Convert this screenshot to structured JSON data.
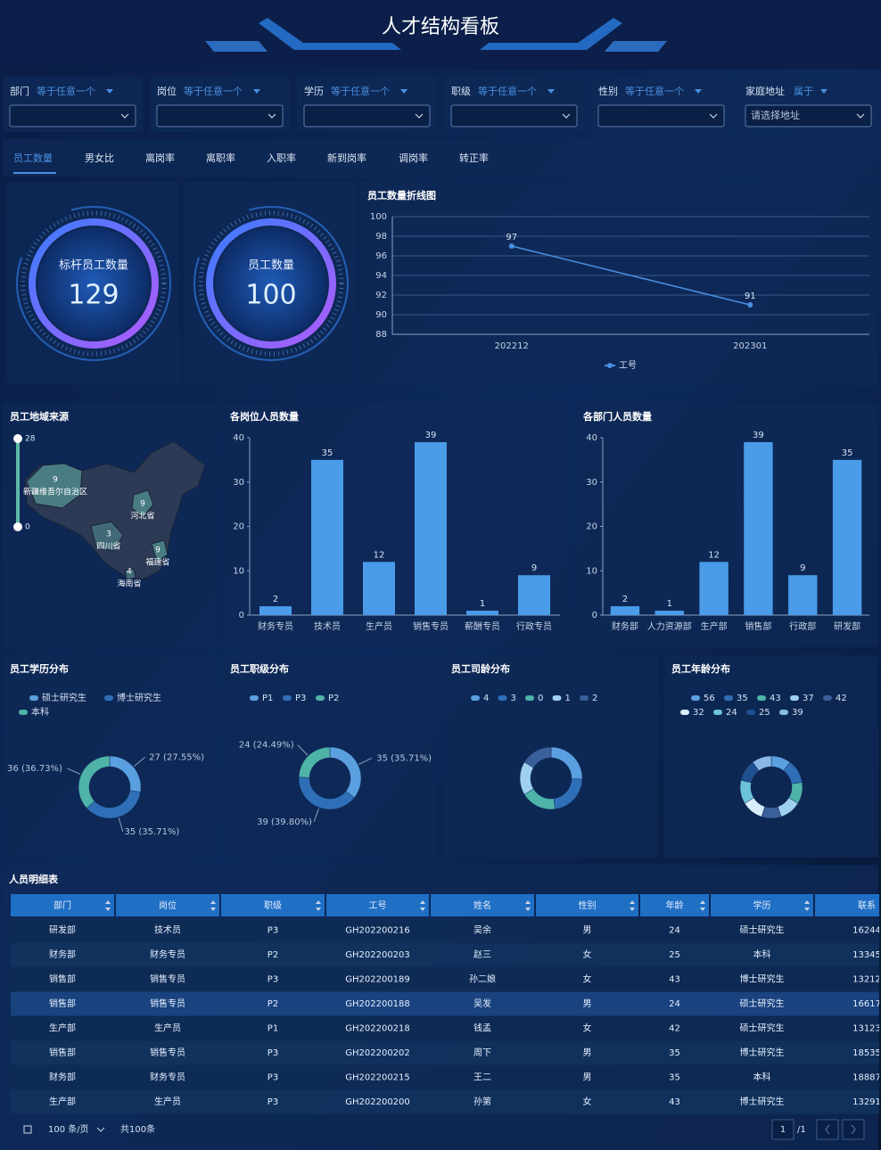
{
  "header": {
    "title": "人才结构看板"
  },
  "filters": [
    {
      "label": "部门",
      "operator": "等于任意一个"
    },
    {
      "label": "岗位",
      "operator": "等于任意一个"
    },
    {
      "label": "学历",
      "operator": "等于任意一个"
    },
    {
      "label": "职级",
      "operator": "等于任意一个"
    },
    {
      "label": "性别",
      "operator": "等于任意一个"
    },
    {
      "label": "家庭地址",
      "operator": "属于",
      "placeholder": "请选择地址"
    }
  ],
  "tabs": [
    "员工数量",
    "男女比",
    "离岗率",
    "离职率",
    "入职率",
    "新到岗率",
    "调岗率",
    "转正率"
  ],
  "gauges": [
    {
      "label": "标杆员工数量",
      "value": 129
    },
    {
      "label": "员工数量",
      "value": 100
    }
  ],
  "chart_data": [
    {
      "type": "line",
      "title": "员工数量折线图",
      "categories": [
        "202212",
        "202301"
      ],
      "series": [
        {
          "name": "工号",
          "color": "#4a90e2",
          "values": [
            97,
            91
          ]
        }
      ],
      "ylim": [
        88,
        100
      ],
      "yticks": [
        88,
        90,
        92,
        94,
        96,
        98,
        100
      ],
      "grid": true
    },
    {
      "type": "map",
      "title": "员工地域来源",
      "regions": [
        "新疆维吾尔自治区",
        "河北省",
        "四川省",
        "福建省",
        "海南省"
      ],
      "values": [
        9,
        9,
        3,
        9,
        4
      ],
      "range": [
        0,
        28
      ],
      "colors": [
        "#3e5f72",
        "#5fb8a8"
      ]
    },
    {
      "type": "bar",
      "title": "各岗位人员数量",
      "categories": [
        "财务专员",
        "技术员",
        "生产员",
        "销售专员",
        "薪酬专员",
        "行政专员"
      ],
      "values": [
        2,
        35,
        12,
        39,
        1,
        9
      ],
      "color": "#4a9be8",
      "ylim": [
        0,
        40
      ],
      "yticks": [
        0,
        10,
        20,
        30,
        40
      ],
      "grid": false
    },
    {
      "type": "bar",
      "title": "各部门人员数量",
      "categories": [
        "财务部",
        "人力资源部",
        "生产部",
        "销售部",
        "行政部",
        "研发部"
      ],
      "values": [
        2,
        1,
        12,
        39,
        9,
        35
      ],
      "color": "#4a9be8",
      "ylim": [
        0,
        40
      ],
      "yticks": [
        0,
        10,
        20,
        30,
        40
      ],
      "grid": false
    },
    {
      "type": "pie",
      "title": "员工学历分布",
      "categories": [
        "硕士研究生",
        "博士研究生",
        "本科"
      ],
      "values": [
        27,
        35,
        36
      ],
      "value_labels": [
        "27 (27.55%)",
        "35 (35.71%)",
        "36 (36.73%)"
      ],
      "colors": [
        "#5aa0e0",
        "#2f6fb8",
        "#4fb3a8"
      ]
    },
    {
      "type": "pie",
      "title": "员工职级分布",
      "categories": [
        "P1",
        "P3",
        "P2"
      ],
      "values": [
        35,
        39,
        24
      ],
      "value_labels": [
        "35 (35.71%)",
        "39 (39.80%)",
        "24 (24.49%)"
      ],
      "colors": [
        "#5aa0e0",
        "#2f6fb8",
        "#4fb3a8"
      ]
    },
    {
      "type": "pie",
      "title": "员工司龄分布",
      "categories": [
        "4",
        "3",
        "0",
        "1",
        "2"
      ],
      "values": [
        25,
        22,
        18,
        17,
        16
      ],
      "colors": [
        "#5aa0e0",
        "#2f6fb8",
        "#4fb3a8",
        "#9fd0f0",
        "#3a5f9a"
      ]
    },
    {
      "type": "pie",
      "title": "员工年龄分布",
      "categories": [
        "56",
        "35",
        "43",
        "37",
        "42",
        "32",
        "24",
        "25",
        "39"
      ],
      "values": [
        10,
        12,
        11,
        11,
        10,
        11,
        12,
        11,
        10
      ],
      "colors": [
        "#5aa0e0",
        "#2f6fb8",
        "#4fb3a8",
        "#9fd0f0",
        "#3a5f9a",
        "#d8ecfa",
        "#6cc3d8",
        "#1f4f8f",
        "#8ab8e6"
      ]
    }
  ],
  "table": {
    "title": "人员明细表",
    "columns": [
      "部门",
      "岗位",
      "职级",
      "工号",
      "姓名",
      "性别",
      "年龄",
      "学历",
      "联系"
    ],
    "rows": [
      [
        "研发部",
        "技术员",
        "P3",
        "GH202200216",
        "吴余",
        "男",
        "24",
        "硕士研究生",
        "16244"
      ],
      [
        "财务部",
        "财务专员",
        "P2",
        "GH202200203",
        "赵三",
        "女",
        "25",
        "本科",
        "13345"
      ],
      [
        "销售部",
        "销售专员",
        "P3",
        "GH202200189",
        "孙二娘",
        "女",
        "43",
        "博士研究生",
        "13212"
      ],
      [
        "销售部",
        "销售专员",
        "P2",
        "GH202200188",
        "吴发",
        "男",
        "24",
        "硕士研究生",
        "16617"
      ],
      [
        "生产部",
        "生产员",
        "P1",
        "GH202200218",
        "钱孟",
        "女",
        "42",
        "硕士研究生",
        "13123"
      ],
      [
        "销售部",
        "销售专员",
        "P3",
        "GH202200202",
        "周下",
        "男",
        "35",
        "博士研究生",
        "18535"
      ],
      [
        "财务部",
        "财务专员",
        "P3",
        "GH202200215",
        "王二",
        "男",
        "35",
        "本科",
        "18887"
      ],
      [
        "生产部",
        "生产员",
        "P3",
        "GH202200200",
        "孙第",
        "女",
        "43",
        "博士研究生",
        "13291"
      ]
    ]
  },
  "pagination": {
    "page_size": "100 条/页",
    "total": "共100条",
    "page": "1",
    "pages": "/1"
  }
}
